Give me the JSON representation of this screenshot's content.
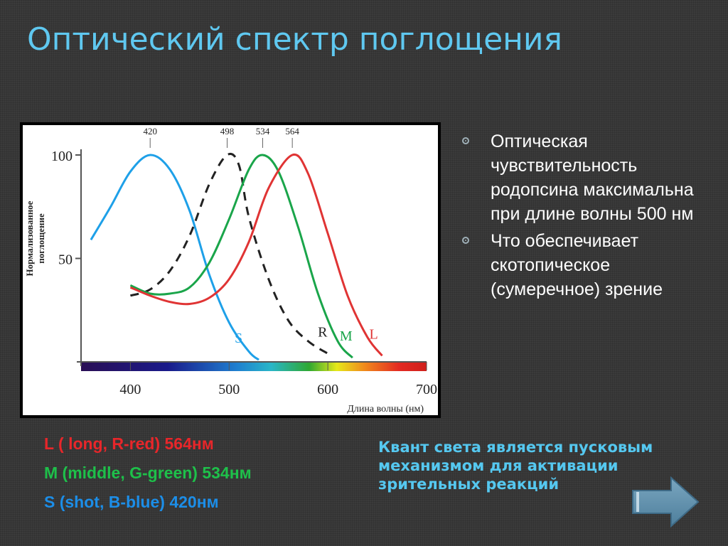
{
  "slide": {
    "title": "Оптический спектр поглощения",
    "bullets": [
      "Оптическая чувствительность родопсина максимальна  при длине волны  500 нм",
      "Что  обеспечивает скотопическое (сумеречное) зрение"
    ],
    "cone_legend": [
      {
        "text": "L ( long, R-red) 564нм",
        "color": "#e8262a"
      },
      {
        "text": "M (middle, G-green) 534нм",
        "color": "#1ec04a"
      },
      {
        "text": "S (shot, B-blue) 420нм",
        "color": "#1c8ee8"
      }
    ],
    "quantum_text": "Квант света является пусковым механизмом  для активации  зрительных реакций",
    "arrow_icon": "right-arrow-icon"
  },
  "chart_data": {
    "type": "line",
    "xlabel": "Длина волны (нм)",
    "ylabel": "Нормализованное поглощение",
    "xlim": [
      350,
      700
    ],
    "ylim": [
      0,
      100
    ],
    "x_ticks": [
      400,
      500,
      600,
      700
    ],
    "y_ticks": [
      50,
      100
    ],
    "peak_markers": [
      420,
      498,
      534,
      564
    ],
    "spectrum_bar": true,
    "series": [
      {
        "name": "S",
        "color": "#1ea0e8",
        "dash": false,
        "points": [
          [
            360,
            59
          ],
          [
            380,
            75
          ],
          [
            400,
            92
          ],
          [
            420,
            100
          ],
          [
            440,
            93
          ],
          [
            460,
            73
          ],
          [
            480,
            42
          ],
          [
            500,
            19
          ],
          [
            520,
            5
          ],
          [
            530,
            1
          ]
        ]
      },
      {
        "name": "R",
        "color": "#222222",
        "dash": true,
        "points": [
          [
            400,
            32
          ],
          [
            420,
            35
          ],
          [
            440,
            44
          ],
          [
            460,
            61
          ],
          [
            480,
            86
          ],
          [
            498,
            100
          ],
          [
            510,
            95
          ],
          [
            520,
            70
          ],
          [
            540,
            40
          ],
          [
            560,
            20
          ],
          [
            580,
            10
          ],
          [
            600,
            4
          ]
        ]
      },
      {
        "name": "M",
        "color": "#1aa54a",
        "dash": false,
        "points": [
          [
            400,
            37
          ],
          [
            420,
            33
          ],
          [
            440,
            33
          ],
          [
            460,
            36
          ],
          [
            480,
            48
          ],
          [
            500,
            69
          ],
          [
            520,
            93
          ],
          [
            534,
            100
          ],
          [
            550,
            92
          ],
          [
            570,
            65
          ],
          [
            590,
            33
          ],
          [
            610,
            10
          ],
          [
            625,
            2
          ]
        ]
      },
      {
        "name": "L",
        "color": "#e03434",
        "dash": false,
        "points": [
          [
            400,
            36
          ],
          [
            420,
            32
          ],
          [
            440,
            29
          ],
          [
            460,
            28
          ],
          [
            480,
            31
          ],
          [
            500,
            40
          ],
          [
            520,
            58
          ],
          [
            540,
            84
          ],
          [
            564,
            100
          ],
          [
            580,
            91
          ],
          [
            600,
            62
          ],
          [
            620,
            32
          ],
          [
            640,
            12
          ],
          [
            655,
            3
          ]
        ]
      }
    ]
  }
}
